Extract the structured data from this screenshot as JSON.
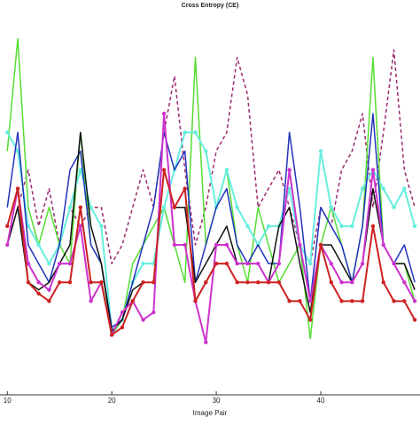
{
  "chart_data": {
    "type": "line",
    "title": "Cross Entropy (CE)",
    "x_label": "Image Pair",
    "x": [
      10,
      11,
      12,
      13,
      14,
      15,
      16,
      17,
      18,
      19,
      20,
      21,
      22,
      23,
      24,
      25,
      26,
      27,
      28,
      29,
      30,
      31,
      32,
      33,
      34,
      35,
      36,
      37,
      38,
      39,
      40,
      41,
      42,
      43,
      44,
      45,
      46,
      47,
      48,
      49
    ],
    "xlim": [
      9.3,
      49.5
    ],
    "xticks": [
      10,
      20,
      30,
      40
    ],
    "ylim": [
      0,
      10.2
    ],
    "series": [
      {
        "color": "#9b2a6e",
        "dashed": true,
        "markers": false,
        "values": [
          4,
          5,
          6,
          4.5,
          5.5,
          4,
          5,
          4.5,
          5,
          5,
          3.5,
          4,
          5,
          6,
          5,
          7,
          8.5,
          6,
          4,
          5,
          6.5,
          7,
          9,
          8,
          5,
          5.5,
          6,
          5,
          4,
          3.5,
          5,
          4.5,
          6,
          6.5,
          7.5,
          5,
          7,
          9.2,
          6,
          5
        ]
      },
      {
        "color": "#55dd33",
        "dashed": false,
        "markers": false,
        "values": [
          6.5,
          9.5,
          5,
          4,
          5,
          4,
          3.5,
          7,
          4,
          3.5,
          1.6,
          2,
          3.5,
          4,
          4.5,
          5,
          4,
          3,
          9,
          4,
          5,
          6,
          4,
          3,
          5,
          4,
          3,
          3.5,
          4,
          1.5,
          4,
          5,
          4,
          3,
          4.5,
          9,
          4,
          3.5,
          3.5,
          2.5
        ]
      },
      {
        "color": "#66eedd",
        "dashed": false,
        "markers": true,
        "values": [
          7,
          6.5,
          4.5,
          4,
          3.5,
          4,
          5,
          6,
          5,
          4.5,
          1.7,
          2,
          3,
          3.5,
          3.5,
          5,
          6,
          7,
          7,
          6.5,
          5,
          6,
          5,
          4.5,
          4,
          4.5,
          4.5,
          5.5,
          4,
          3.5,
          6.5,
          5,
          4.5,
          4.5,
          5.5,
          6,
          5.5,
          5,
          5.5,
          4.5
        ]
      },
      {
        "color": "#2233bb",
        "dashed": false,
        "markers": false,
        "values": [
          5,
          7,
          4,
          3.5,
          3,
          4,
          6,
          6.5,
          4,
          3.5,
          1.8,
          2,
          3,
          4,
          5,
          7,
          6,
          6.5,
          3,
          4,
          5,
          5.5,
          4,
          3.5,
          4,
          3.5,
          3.5,
          7,
          5,
          2.5,
          5,
          4.5,
          4,
          3,
          4.5,
          7.5,
          4,
          3.5,
          4,
          3
        ]
      },
      {
        "color": "#111111",
        "dashed": false,
        "markers": false,
        "values": [
          4,
          5,
          3,
          2.8,
          3,
          3.5,
          4,
          7,
          4.5,
          3.5,
          1.7,
          2,
          2.8,
          3,
          3,
          6,
          5,
          5,
          3,
          3.5,
          4,
          4.5,
          3.5,
          3.5,
          3.5,
          3,
          4.5,
          5,
          3.5,
          2.2,
          4,
          4,
          3.5,
          3,
          3.5,
          5.5,
          4,
          3.5,
          3.5,
          2.8
        ]
      },
      {
        "color": "#cc33cc",
        "dashed": false,
        "markers": true,
        "values": [
          4,
          5.5,
          3.5,
          3,
          2.8,
          3.5,
          3.5,
          4.5,
          2.5,
          3,
          1.6,
          2.2,
          2.5,
          2,
          2.2,
          7.5,
          4,
          4,
          2.5,
          1.4,
          4,
          4,
          3.5,
          3.5,
          3.5,
          3,
          3.5,
          6,
          4,
          2.5,
          4,
          3.5,
          3,
          3,
          3.5,
          6,
          4,
          3.5,
          3,
          2.5
        ]
      },
      {
        "color": "#cc2222",
        "dashed": false,
        "markers": true,
        "values": [
          4.5,
          5.5,
          3,
          2.7,
          2.5,
          3,
          3,
          5,
          3,
          3,
          1.6,
          1.8,
          2.5,
          3,
          3,
          6,
          5,
          5.5,
          2.5,
          3,
          3.5,
          3.5,
          3,
          3,
          3,
          3,
          3,
          2.5,
          2.5,
          2,
          4,
          3,
          2.5,
          2.5,
          2.5,
          4.5,
          3,
          2.5,
          2.5,
          2
        ]
      }
    ]
  }
}
